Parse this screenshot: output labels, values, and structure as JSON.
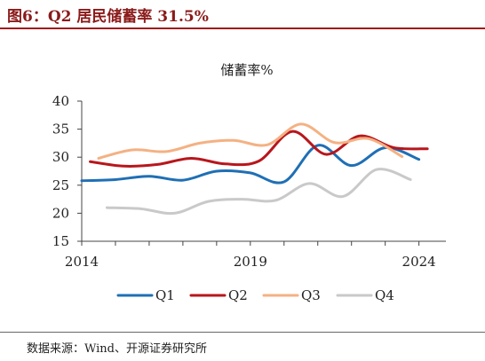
{
  "figure_title": "图6：Q2 居民储蓄率 31.5%",
  "source": "数据来源：Wind、开源证券研究所",
  "colors": {
    "title": "#8b1a1a",
    "rule": "#9e1b1b"
  },
  "chart_data": {
    "type": "line",
    "title": "储蓄率%",
    "ylim": [
      15,
      40
    ],
    "yticks": [
      "15",
      "20",
      "25",
      "30",
      "35",
      "40"
    ],
    "xrange": [
      2014,
      2024.8
    ],
    "xticks": [
      {
        "v": 2014,
        "label": "2014"
      },
      {
        "v": 2019,
        "label": "2019"
      },
      {
        "v": 2024,
        "label": "2024"
      }
    ],
    "legend_position": "bottom",
    "series": [
      {
        "name": "Q1",
        "color": "#1f6fb5",
        "x": [
          2014,
          2015,
          2016,
          2017,
          2018,
          2019,
          2020,
          2021,
          2022,
          2023,
          2024
        ],
        "y": [
          25.8,
          26.0,
          26.6,
          25.9,
          27.5,
          27.2,
          25.6,
          32.1,
          28.5,
          31.7,
          29.6
        ]
      },
      {
        "name": "Q2",
        "color": "#b8161c",
        "x": [
          2014.25,
          2015.25,
          2016.25,
          2017.25,
          2018.25,
          2019.25,
          2020.25,
          2021.25,
          2022.25,
          2023.25,
          2024.25
        ],
        "y": [
          29.2,
          28.4,
          28.7,
          29.8,
          28.8,
          29.3,
          34.6,
          30.5,
          33.8,
          31.7,
          31.5
        ]
      },
      {
        "name": "Q3",
        "color": "#f4b183",
        "x": [
          2014.5,
          2015.5,
          2016.5,
          2017.5,
          2018.5,
          2019.5,
          2020.5,
          2021.5,
          2022.5,
          2023.5
        ],
        "y": [
          29.8,
          31.3,
          31.0,
          32.5,
          33.0,
          32.2,
          35.9,
          32.6,
          33.3,
          30.1
        ]
      },
      {
        "name": "Q4",
        "color": "#c9c9c9",
        "x": [
          2014.75,
          2015.75,
          2016.75,
          2017.75,
          2018.75,
          2019.75,
          2020.75,
          2021.75,
          2022.75,
          2023.75
        ],
        "y": [
          21.0,
          20.8,
          20.0,
          22.1,
          22.5,
          22.3,
          25.3,
          23.0,
          27.8,
          26.0
        ]
      }
    ]
  }
}
